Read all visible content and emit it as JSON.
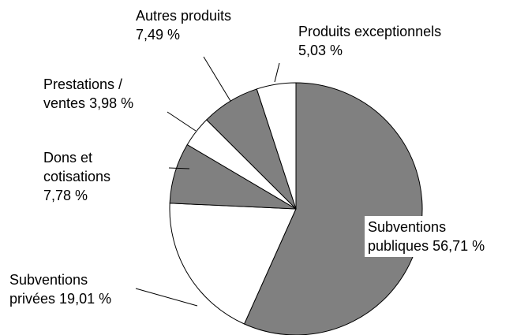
{
  "chart_data": {
    "type": "pie",
    "categories": [
      "Subventions publiques",
      "Subventions privées",
      "Dons et cotisations",
      "Prestations / ventes",
      "Autres produits",
      "Produits exceptionnels"
    ],
    "values": [
      56.71,
      19.01,
      7.78,
      3.98,
      7.49,
      5.03
    ],
    "value_labels": [
      "56,71 %",
      "19,01 %",
      "7,78 %",
      "3,98 %",
      "7,49 %",
      "5,03 %"
    ],
    "colors": [
      "#808080",
      "#ffffff",
      "#808080",
      "#ffffff",
      "#808080",
      "#ffffff"
    ]
  }
}
